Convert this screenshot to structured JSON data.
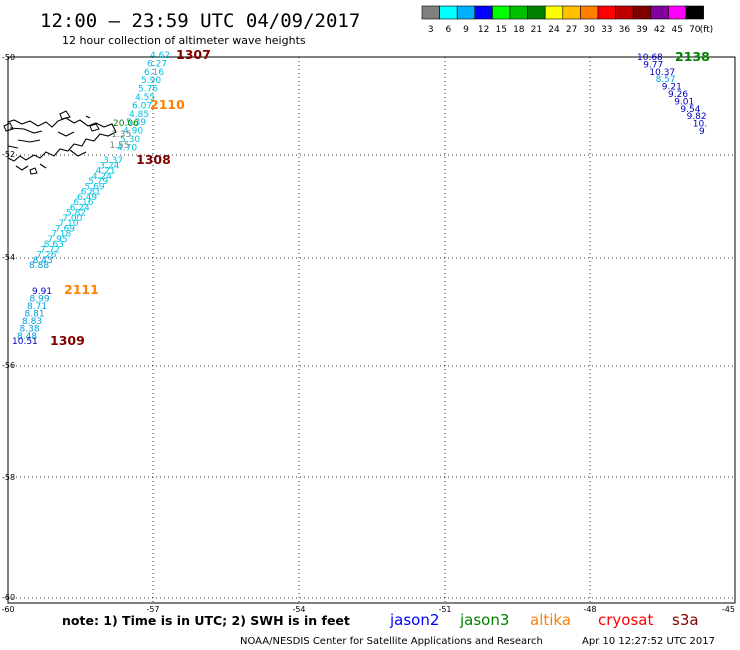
{
  "header": {
    "title": "12:00 – 23:59 UTC 04/09/2017",
    "subtitle": "12 hour collection of altimeter wave heights"
  },
  "legend": {
    "unit": "(ft)",
    "items": [
      {
        "label": "3",
        "color": "#808080"
      },
      {
        "label": "6",
        "color": "#00ffff"
      },
      {
        "label": "9",
        "color": "#00b0ff"
      },
      {
        "label": "12",
        "color": "#0000ff"
      },
      {
        "label": "15",
        "color": "#00ff00"
      },
      {
        "label": "18",
        "color": "#00c000"
      },
      {
        "label": "21",
        "color": "#008000"
      },
      {
        "label": "24",
        "color": "#ffff00"
      },
      {
        "label": "27",
        "color": "#ffc000"
      },
      {
        "label": "30",
        "color": "#ff8000"
      },
      {
        "label": "33",
        "color": "#ff0000"
      },
      {
        "label": "36",
        "color": "#c00000"
      },
      {
        "label": "39",
        "color": "#800000"
      },
      {
        "label": "42",
        "color": "#8000a0"
      },
      {
        "label": "45",
        "color": "#ff00ff"
      },
      {
        "label": "70",
        "color": "#000000"
      }
    ]
  },
  "axes": {
    "lat_labels": [
      "-50",
      "-52",
      "-54",
      "-56",
      "-58",
      "-60"
    ],
    "lon_labels": [
      "-60",
      "-57",
      "-54",
      "-51",
      "-48",
      "-45"
    ]
  },
  "tracks": [
    {
      "label": "1307",
      "label_color": "#800000",
      "values": [
        {
          "v": "4.62",
          "c": "#00c0e0"
        },
        {
          "v": "6.27",
          "c": "#00c0e0"
        },
        {
          "v": "6.16",
          "c": "#00c0e0"
        },
        {
          "v": "5.90",
          "c": "#00c0e0"
        },
        {
          "v": "5.76",
          "c": "#00c0e0"
        },
        {
          "v": "4.55",
          "c": "#00c0e0"
        },
        {
          "v": "6.07",
          "c": "#00c0e0"
        },
        {
          "v": "4.85",
          "c": "#00c0e0"
        },
        {
          "v": "5.39",
          "c": "#00c0e0"
        },
        {
          "v": "4.90",
          "c": "#00c0e0"
        },
        {
          "v": "5.30",
          "c": "#00c0e0"
        },
        {
          "v": "4.70",
          "c": "#00c0e0"
        }
      ]
    },
    {
      "label": "2110",
      "label_color": "#ff8000",
      "values": [
        {
          "v": "20.06",
          "c": "#008000"
        },
        {
          "v": "1.35",
          "c": "#808080"
        },
        {
          "v": "1.55",
          "c": "#808080"
        }
      ]
    },
    {
      "label": "1308",
      "label_color": "#800000",
      "values": [
        {
          "v": "3.37",
          "c": "#00c0e0"
        },
        {
          "v": "3.24",
          "c": "#00c0e0"
        },
        {
          "v": "4.21",
          "c": "#00c0e0"
        },
        {
          "v": "4.24",
          "c": "#00c0e0"
        },
        {
          "v": "5.79",
          "c": "#00c0e0"
        },
        {
          "v": "5.69",
          "c": "#00c0e0"
        },
        {
          "v": "6.81",
          "c": "#00c0e0"
        },
        {
          "v": "6.49",
          "c": "#00c0e0"
        },
        {
          "v": "6.16",
          "c": "#00c0e0"
        },
        {
          "v": "6.24",
          "c": "#00c0e0"
        },
        {
          "v": "5.82",
          "c": "#00c0e0"
        },
        {
          "v": "7.00",
          "c": "#00c0e0"
        },
        {
          "v": "7.10",
          "c": "#00c0e0"
        },
        {
          "v": "7.69",
          "c": "#00c0e0"
        },
        {
          "v": "7.18",
          "c": "#00c0e0"
        },
        {
          "v": "7.95",
          "c": "#00c0e0"
        },
        {
          "v": "8.63",
          "c": "#00c0e0"
        },
        {
          "v": "7.72",
          "c": "#00c0e0"
        },
        {
          "v": "7.26",
          "c": "#00c0e0"
        },
        {
          "v": "8.43",
          "c": "#00a0e0"
        },
        {
          "v": "8.88",
          "c": "#00a0e0"
        }
      ]
    },
    {
      "label": "2111",
      "label_color": "#ff8000",
      "values": [
        {
          "v": "9.91",
          "c": "#0000c0"
        },
        {
          "v": "8.99",
          "c": "#00a0e0"
        },
        {
          "v": "8.71",
          "c": "#00a0e0"
        },
        {
          "v": "8.81",
          "c": "#00a0e0"
        },
        {
          "v": "8.83",
          "c": "#00a0e0"
        },
        {
          "v": "8.38",
          "c": "#00a0e0"
        },
        {
          "v": "8.48",
          "c": "#00a0e0"
        }
      ]
    },
    {
      "label": "1309",
      "label_color": "#800000",
      "values": [
        {
          "v": "10.51",
          "c": "#0000c0"
        }
      ]
    },
    {
      "label": "2138",
      "label_color": "#008000",
      "values": [
        {
          "v": "10.68",
          "c": "#0000c0"
        },
        {
          "v": "9.77",
          "c": "#0000c0"
        },
        {
          "v": "10.37",
          "c": "#0000c0"
        },
        {
          "v": "8.57",
          "c": "#00a0e0"
        },
        {
          "v": "9.21",
          "c": "#0000c0"
        },
        {
          "v": "9.26",
          "c": "#0000c0"
        },
        {
          "v": "9.01",
          "c": "#0000c0"
        },
        {
          "v": "9.54",
          "c": "#0000c0"
        },
        {
          "v": "9.82",
          "c": "#0000c0"
        },
        {
          "v": "10.",
          "c": "#0000c0"
        },
        {
          "v": "9",
          "c": "#0000c0"
        }
      ]
    }
  ],
  "footer": {
    "note": "note: 1) Time is in UTC; 2) SWH is in feet",
    "satellites": [
      {
        "name": "jason2",
        "color": "#0000ff"
      },
      {
        "name": "jason3",
        "color": "#008000"
      },
      {
        "name": "altika",
        "color": "#ff8000"
      },
      {
        "name": "cryosat",
        "color": "#ff0000"
      },
      {
        "name": "s3a",
        "color": "#800000"
      }
    ],
    "credit": "NOAA/NESDIS Center for Satellite Applications and Research",
    "timestamp": "Apr 10 12:27:52 UTC 2017"
  }
}
